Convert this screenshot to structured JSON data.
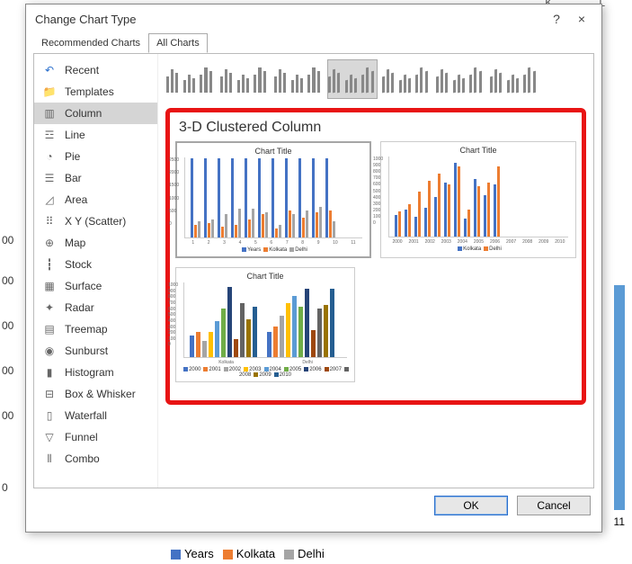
{
  "background": {
    "col_letters": [
      "K",
      "L"
    ],
    "y_axis": [
      "00",
      "00",
      "00",
      "00",
      "00",
      "0"
    ],
    "x_label": "11",
    "legend": [
      {
        "swatch": "#4472c4",
        "label": "Years"
      },
      {
        "swatch": "#ed7d31",
        "label": "Kolkata"
      },
      {
        "swatch": "#a5a5a5",
        "label": "Delhi"
      }
    ]
  },
  "dialog": {
    "title": "Change Chart Type",
    "help": "?",
    "close": "×",
    "tabs": {
      "recommended": "Recommended Charts",
      "all": "All Charts"
    },
    "sidebar": [
      {
        "icon": "↶",
        "label": "Recent",
        "color": "#2a6fcc"
      },
      {
        "icon": "📁",
        "label": "Templates",
        "color": "#e8a33d"
      },
      {
        "icon": "▥",
        "label": "Column",
        "color": "#666"
      },
      {
        "icon": "☲",
        "label": "Line",
        "color": "#666"
      },
      {
        "icon": "◔",
        "label": "Pie",
        "color": "#666"
      },
      {
        "icon": "☰",
        "label": "Bar",
        "color": "#666"
      },
      {
        "icon": "◿",
        "label": "Area",
        "color": "#666"
      },
      {
        "icon": "⠿",
        "label": "X Y (Scatter)",
        "color": "#666"
      },
      {
        "icon": "⊕",
        "label": "Map",
        "color": "#666"
      },
      {
        "icon": "┇",
        "label": "Stock",
        "color": "#666"
      },
      {
        "icon": "▦",
        "label": "Surface",
        "color": "#666"
      },
      {
        "icon": "✦",
        "label": "Radar",
        "color": "#666"
      },
      {
        "icon": "▤",
        "label": "Treemap",
        "color": "#666"
      },
      {
        "icon": "◉",
        "label": "Sunburst",
        "color": "#666"
      },
      {
        "icon": "▮",
        "label": "Histogram",
        "color": "#666"
      },
      {
        "icon": "⊟",
        "label": "Box & Whisker",
        "color": "#666"
      },
      {
        "icon": "▯",
        "label": "Waterfall",
        "color": "#666"
      },
      {
        "icon": "▽",
        "label": "Funnel",
        "color": "#666"
      },
      {
        "icon": "⫴",
        "label": "Combo",
        "color": "#666"
      }
    ],
    "selected_sidebar": 2,
    "subtypes": {
      "count": 7,
      "selected": 3
    },
    "section_title": "3-D Clustered Column",
    "previews": {
      "chart_title": "Chart Title",
      "p1": {
        "ylabels": [
          "2500",
          "2000",
          "1500",
          "1000",
          "500",
          "0"
        ],
        "xlabels": [
          "1",
          "2",
          "3",
          "4",
          "5",
          "6",
          "7",
          "8",
          "9",
          "10",
          "11"
        ],
        "groups": [
          [
            88,
            14,
            18
          ],
          [
            88,
            16,
            20
          ],
          [
            88,
            12,
            26
          ],
          [
            88,
            14,
            32
          ],
          [
            88,
            20,
            32
          ],
          [
            88,
            26,
            28
          ],
          [
            88,
            10,
            14
          ],
          [
            88,
            30,
            26
          ],
          [
            88,
            22,
            30
          ],
          [
            88,
            28,
            34
          ],
          [
            88,
            30,
            18
          ]
        ],
        "colors": [
          "#4472c4",
          "#ed7d31",
          "#a5a5a5"
        ],
        "legend": [
          {
            "c": "#4472c4",
            "t": "Years"
          },
          {
            "c": "#ed7d31",
            "t": "Kolkata"
          },
          {
            "c": "#a5a5a5",
            "t": "Delhi"
          }
        ]
      },
      "p2": {
        "ylabels": [
          "1000",
          "900",
          "800",
          "700",
          "600",
          "500",
          "400",
          "300",
          "200",
          "100",
          "0"
        ],
        "xlabels": [
          "2000",
          "2001",
          "2002",
          "2003",
          "2004",
          "2005",
          "2006",
          "2007",
          "2008",
          "2009",
          "2010"
        ],
        "groups": [
          [
            24,
            28
          ],
          [
            30,
            36
          ],
          [
            22,
            50
          ],
          [
            32,
            62
          ],
          [
            44,
            70
          ],
          [
            60,
            58
          ],
          [
            82,
            78
          ],
          [
            20,
            30
          ],
          [
            64,
            56
          ],
          [
            46,
            60
          ],
          [
            58,
            78
          ]
        ],
        "colors": [
          "#4472c4",
          "#ed7d31"
        ],
        "legend": [
          {
            "c": "#4472c4",
            "t": "Kolkata"
          },
          {
            "c": "#ed7d31",
            "t": "Delhi"
          }
        ]
      },
      "p3": {
        "ylabels": [
          "1000",
          "900",
          "800",
          "700",
          "600",
          "500",
          "400",
          "300",
          "200",
          "100",
          "0"
        ],
        "xsections": [
          "Kolkata",
          "Delhi"
        ],
        "groups": [
          [
            24,
            28,
            18,
            28,
            40,
            54,
            78,
            20,
            60,
            42,
            56
          ],
          [
            28,
            34,
            46,
            60,
            68,
            56,
            76,
            30,
            54,
            58,
            76
          ]
        ],
        "colors": [
          "#4472c4",
          "#ed7d31",
          "#a5a5a5",
          "#ffc000",
          "#5b9bd5",
          "#70ad47",
          "#264478",
          "#9e480e",
          "#636363",
          "#997300",
          "#255e91"
        ],
        "legend": [
          {
            "c": "#4472c4",
            "t": "2000"
          },
          {
            "c": "#ed7d31",
            "t": "2001"
          },
          {
            "c": "#a5a5a5",
            "t": "2002"
          },
          {
            "c": "#ffc000",
            "t": "2003"
          },
          {
            "c": "#5b9bd5",
            "t": "2004"
          },
          {
            "c": "#70ad47",
            "t": "2005"
          },
          {
            "c": "#264478",
            "t": "2006"
          },
          {
            "c": "#9e480e",
            "t": "2007"
          },
          {
            "c": "#636363",
            "t": "2008"
          },
          {
            "c": "#997300",
            "t": "2009"
          },
          {
            "c": "#255e91",
            "t": "2010"
          }
        ]
      }
    },
    "buttons": {
      "ok": "OK",
      "cancel": "Cancel"
    }
  }
}
